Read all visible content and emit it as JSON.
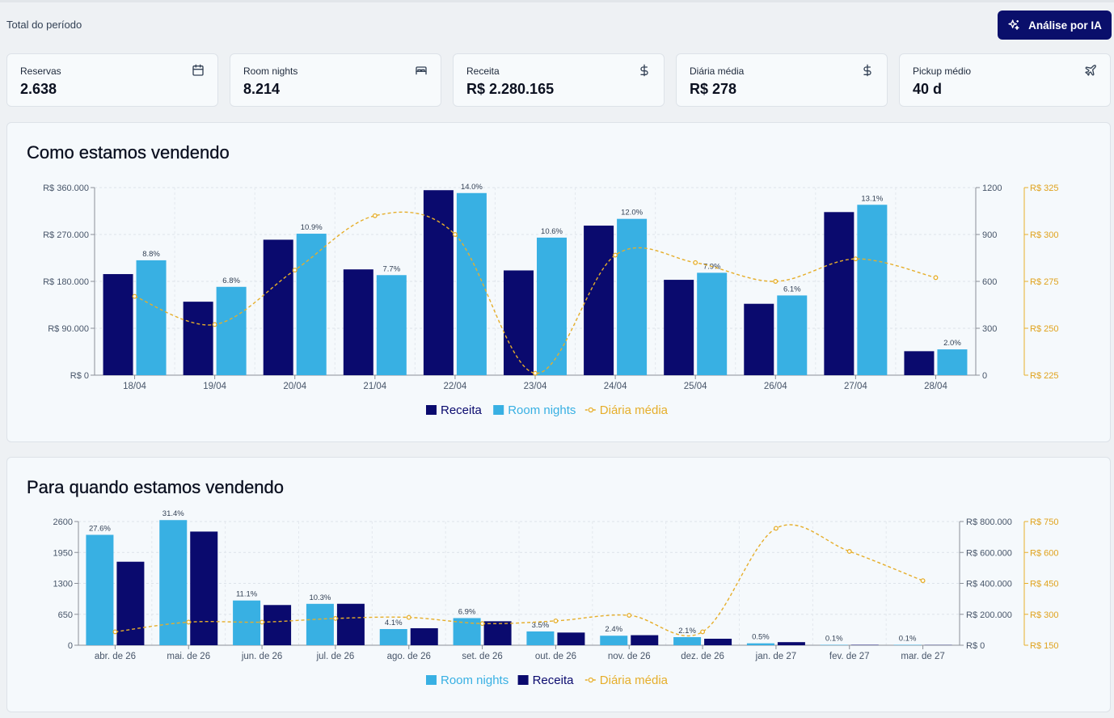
{
  "header": {
    "period_label": "Total do período",
    "ai_button_label": "Análise por IA"
  },
  "kpis": [
    {
      "label": "Reservas",
      "value": "2.638",
      "icon": "calendar-icon"
    },
    {
      "label": "Room nights",
      "value": "8.214",
      "icon": "bed-icon"
    },
    {
      "label": "Receita",
      "value": "R$ 2.280.165",
      "icon": "dollar-icon"
    },
    {
      "label": "Diária média",
      "value": "R$ 278",
      "icon": "dollar-icon"
    },
    {
      "label": "Pickup médio",
      "value": "40 d",
      "icon": "plane-icon"
    }
  ],
  "colors": {
    "receita": "#0a0a6e",
    "room_nights": "#38b0e3",
    "diaria": "#e6ae2a",
    "accent_button": "#0a0f6b"
  },
  "chart_data": [
    {
      "type": "bar",
      "title": "Como estamos vendendo",
      "categories": [
        "18/04",
        "19/04",
        "20/04",
        "21/04",
        "22/04",
        "23/04",
        "24/04",
        "25/04",
        "26/04",
        "27/04",
        "28/04"
      ],
      "series": [
        {
          "name": "Receita",
          "axis": "left",
          "values": [
            194000,
            141000,
            260000,
            203000,
            355000,
            201000,
            287000,
            183000,
            137000,
            313000,
            46000
          ]
        },
        {
          "name": "Room nights",
          "axis": "right1",
          "values": [
            735,
            565,
            905,
            640,
            1165,
            880,
            1000,
            655,
            510,
            1090,
            165
          ],
          "labels": [
            "8.8%",
            "6.8%",
            "10.9%",
            "7.7%",
            "14.0%",
            "10.6%",
            "12.0%",
            "7.9%",
            "6.1%",
            "13.1%",
            "2.0%"
          ]
        },
        {
          "name": "Diária média",
          "axis": "right2",
          "values": [
            267,
            252,
            281,
            310,
            300,
            226,
            289,
            285,
            275,
            287,
            277
          ]
        }
      ],
      "legend": [
        "Receita",
        "Room nights",
        "Diária média"
      ],
      "legend_position": "bottom",
      "y_left": {
        "ticks": [
          "R$ 0",
          "R$ 90.000",
          "R$ 180.000",
          "R$ 270.000",
          "R$ 360.000"
        ],
        "range": [
          0,
          360000
        ]
      },
      "y_right1": {
        "ticks": [
          "0",
          "300",
          "600",
          "900",
          "1200"
        ],
        "range": [
          0,
          1200
        ]
      },
      "y_right2": {
        "ticks": [
          "R$ 225",
          "R$ 250",
          "R$ 275",
          "R$ 300",
          "R$ 325"
        ],
        "range": [
          225,
          325
        ]
      },
      "grid": true
    },
    {
      "type": "bar",
      "title": "Para quando estamos vendendo",
      "categories": [
        "abr. de 26",
        "mai. de 26",
        "jun. de 26",
        "jul. de 26",
        "ago. de 26",
        "set. de 26",
        "out. de 26",
        "nov. de 26",
        "dez. de 26",
        "jan. de 27",
        "fev. de 27",
        "mar. de 27"
      ],
      "series": [
        {
          "name": "Room nights",
          "axis": "left",
          "values": [
            2320,
            2630,
            940,
            870,
            340,
            570,
            290,
            200,
            170,
            40,
            8,
            8
          ],
          "labels": [
            "27.6%",
            "31.4%",
            "11.1%",
            "10.3%",
            "4.1%",
            "6.9%",
            "3.5%",
            "2.4%",
            "2.1%",
            "0.5%",
            "0.1%",
            "0.1%"
          ]
        },
        {
          "name": "Receita",
          "axis": "right1",
          "values": [
            540000,
            735000,
            260000,
            268000,
            110000,
            155000,
            82000,
            65000,
            42000,
            20000,
            2500,
            1500
          ]
        },
        {
          "name": "Diária média",
          "axis": "right2",
          "values": [
            215,
            262,
            262,
            280,
            285,
            255,
            268,
            295,
            215,
            717,
            605,
            463
          ]
        }
      ],
      "legend": [
        "Room nights",
        "Receita",
        "Diária média"
      ],
      "legend_position": "bottom",
      "y_left": {
        "ticks": [
          "0",
          "650",
          "1300",
          "1950",
          "2600"
        ],
        "range": [
          0,
          2600
        ]
      },
      "y_right1": {
        "ticks": [
          "R$ 0",
          "R$ 200.000",
          "R$ 400.000",
          "R$ 600.000",
          "R$ 800.000"
        ],
        "range": [
          0,
          800000
        ]
      },
      "y_right2": {
        "ticks": [
          "R$ 150",
          "R$ 300",
          "R$ 450",
          "R$ 600",
          "R$ 750"
        ],
        "range": [
          150,
          750
        ]
      },
      "grid": true
    }
  ]
}
